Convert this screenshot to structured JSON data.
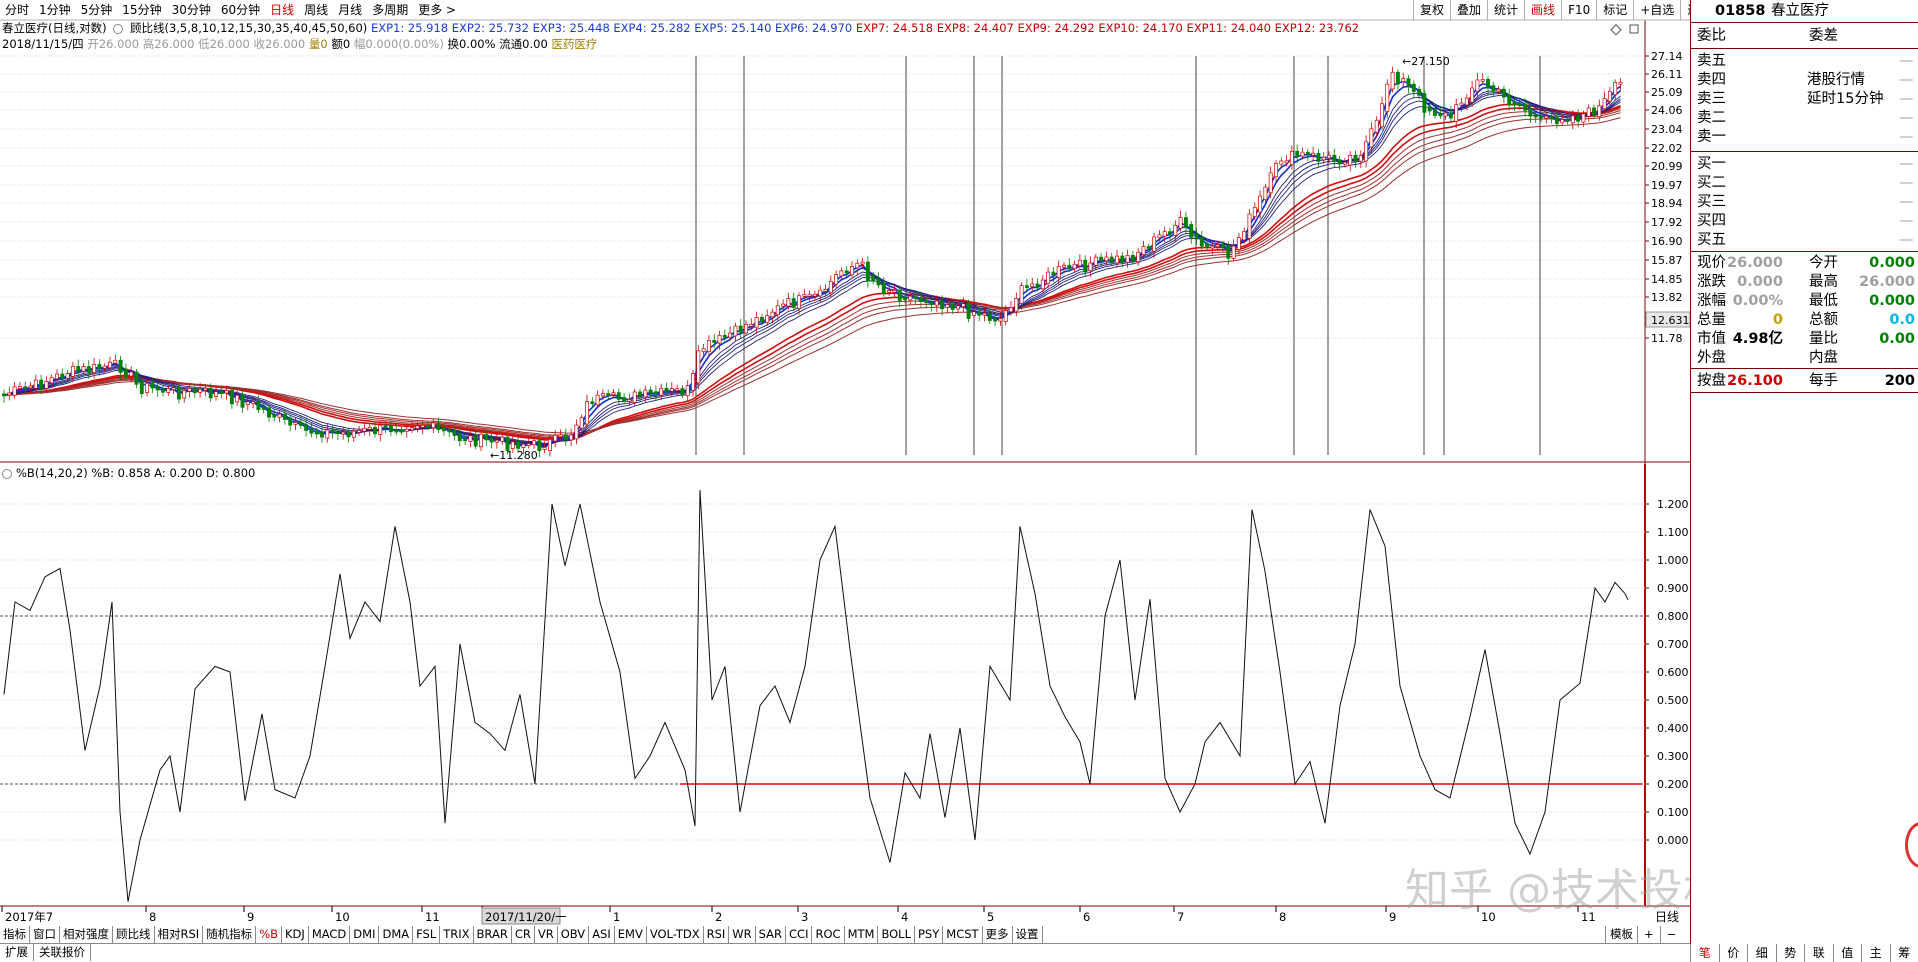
{
  "period_tabs": [
    "分时",
    "1分钟",
    "5分钟",
    "15分钟",
    "30分钟",
    "60分钟",
    "日线",
    "周线",
    "月线",
    "多周期",
    "更多 >"
  ],
  "active_period": "日线",
  "right_tools": [
    "复权",
    "叠加",
    "统计",
    "画线",
    "F10",
    "标记",
    "+自选",
    "返回"
  ],
  "active_tool": "画线",
  "chart_header": {
    "title": "春立医疗(日线,对数)",
    "indicator": "顾比线(3,5,8,10,12,15,30,35,40,45,50,60)",
    "exp_short": [
      "EXP1: 25.918",
      "EXP2: 25.732",
      "EXP3: 25.448",
      "EXP4: 25.282",
      "EXP5: 25.140",
      "EXP6: 24.970"
    ],
    "exp_long": [
      "EXP7: 24.518",
      "EXP8: 24.407",
      "EXP9: 24.292",
      "EXP10: 24.170",
      "EXP11: 24.040",
      "EXP12: 23.762"
    ],
    "date": "2018/11/15/四",
    "ohlc": "开26.000 高26.000 低26.000 收26.000",
    "vol": "量0",
    "amount": "额0",
    "amplitude": "幅0.000(0.00%)",
    "turnover": "换0.00%",
    "float": "流通0.00",
    "sector": "医药医疗"
  },
  "indicator_header": "%B(14,20,2)  %B: 0.858  A: 0.200  D: 0.800",
  "price_chart": {
    "ticks": [
      "27.14",
      "26.11",
      "25.09",
      "24.06",
      "23.04",
      "22.02",
      "20.99",
      "19.97",
      "18.94",
      "17.92",
      "16.90",
      "15.87",
      "14.85",
      "13.82",
      "12.631",
      "11.78"
    ],
    "current_price": "12.631",
    "high_label": "27.150",
    "low_label": "11.280"
  },
  "osc_chart": {
    "ticks": [
      "1.200",
      "1.100",
      "1.000",
      "0.900",
      "0.800",
      "0.700",
      "0.600",
      "0.500",
      "0.400",
      "0.300",
      "0.200",
      "0.100",
      "0.000"
    ],
    "ref_a": 0.2,
    "ref_d": 0.8,
    "last": 0.858
  },
  "x_axis": {
    "labels": [
      "2017年7",
      "8",
      "9",
      "10",
      "11",
      "2017/11/20/一",
      "1",
      "2",
      "3",
      "4",
      "5",
      "6",
      "7",
      "8",
      "9",
      "10",
      "11"
    ],
    "period": "日线"
  },
  "indicator_tabs": [
    "指标",
    "窗口",
    "相对强度",
    "顾比线",
    "相对RSI",
    "随机指标",
    "%B",
    "KDJ",
    "MACD",
    "DMI",
    "DMA",
    "FSL",
    "TRIX",
    "BRAR",
    "CR",
    "VR",
    "OBV",
    "ASI",
    "EMV",
    "VOL-TDX",
    "RSI",
    "WR",
    "SAR",
    "CCI",
    "ROC",
    "MTM",
    "BOLL",
    "PSY",
    "MCST",
    "更多",
    "设置"
  ],
  "active_indicator": "%B",
  "template_btn": "模板",
  "ext_tabs": [
    "扩展",
    "关联报价"
  ],
  "watermark": "知乎 @技术投机客",
  "quote": {
    "code": "01858",
    "name": "春立医疗",
    "weibi_label": "委比",
    "weicha_label": "委差",
    "dash": "—",
    "hk_line1": "港股行情",
    "hk_line2": "延时15分钟",
    "sell": [
      "卖五",
      "卖四",
      "卖三",
      "卖二",
      "卖一"
    ],
    "buy": [
      "买一",
      "买二",
      "买三",
      "买四",
      "买五"
    ],
    "stats": {
      "xj_label": "现价",
      "xj": "26.000",
      "jk_label": "今开",
      "jk": "0.000",
      "zd_label": "涨跌",
      "zd": "0.000",
      "zg_label": "最高",
      "zg": "26.000",
      "zf_label": "涨幅",
      "zf": "0.00%",
      "zdi_label": "最低",
      "zdi": "0.000",
      "zl_label": "总量",
      "zl": "0",
      "ze_label": "总额",
      "ze": "0.0",
      "sz_label": "市值",
      "sz": "4.98亿",
      "lb_label": "量比",
      "lb": "0.00",
      "wp_label": "外盘",
      "np_label": "内盘",
      "ap_label": "按盘",
      "ap": "26.100",
      "ms_label": "每手",
      "ms": "200"
    },
    "colors": {
      "up": "#d00000",
      "down": "#008000",
      "gray": "#a0a0a0",
      "gold": "#c8a000",
      "cyan": "#00b8e0"
    }
  },
  "bottom_right_tabs": [
    "笔",
    "价",
    "细",
    "势",
    "联",
    "值",
    "主",
    "筹"
  ],
  "active_bottom_right": "笔"
}
